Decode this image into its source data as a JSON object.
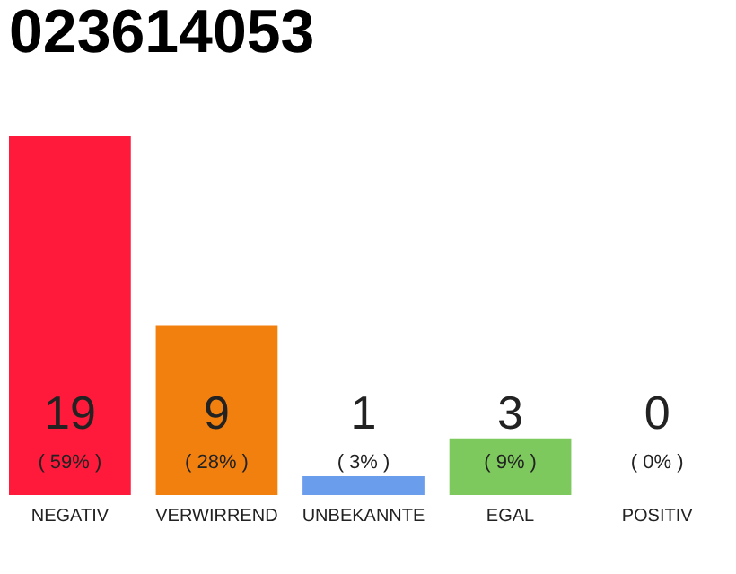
{
  "chart_data": {
    "type": "bar",
    "title": "023614053",
    "categories": [
      "NEGATIV",
      "VERWIRREND",
      "UNBEKANNTE",
      "EGAL",
      "POSITIV"
    ],
    "values": [
      19,
      9,
      1,
      3,
      0
    ],
    "colors": [
      "#ff1a3c",
      "#f2800f",
      "#6b9ded",
      "#7dc95e",
      "#cccccc"
    ],
    "data_labels": true,
    "annotations": [
      "( 59% )",
      "( 28% )",
      "( 3% )",
      "( 9% )",
      "( 0% )"
    ],
    "grid": false
  }
}
